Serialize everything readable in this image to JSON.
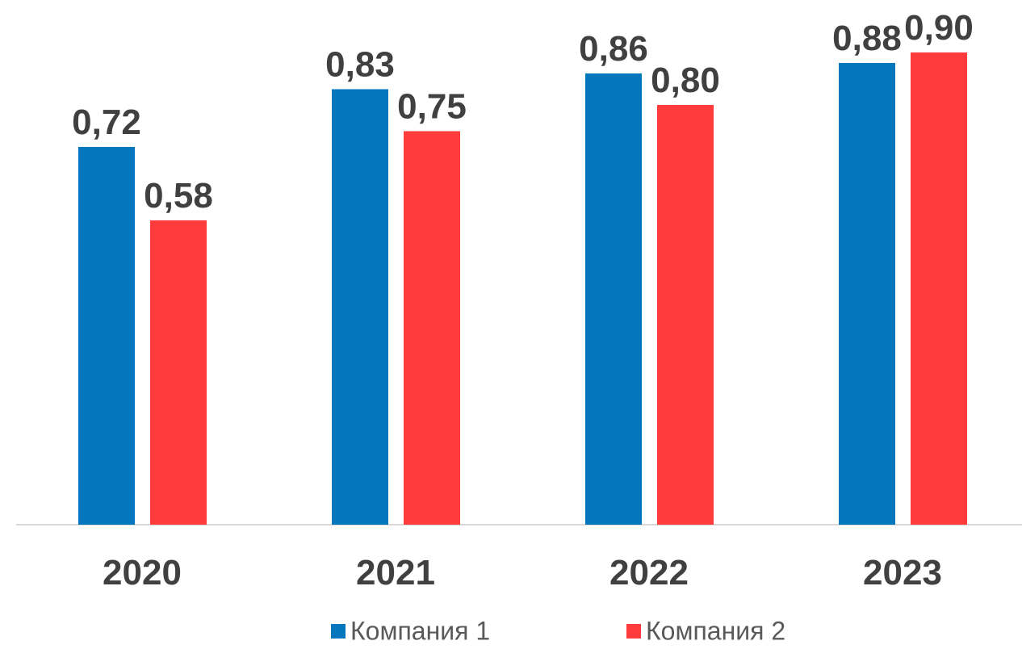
{
  "chart_data": {
    "type": "bar",
    "categories": [
      "2020",
      "2021",
      "2022",
      "2023"
    ],
    "series": [
      {
        "name": "Компания 1",
        "color": "#0277bd",
        "values": [
          0.72,
          0.83,
          0.86,
          0.88
        ],
        "value_labels": [
          "0,72",
          "0,83",
          "0,86",
          "0,88"
        ]
      },
      {
        "name": "Компания 2",
        "color": "#ff3b3b",
        "values": [
          0.58,
          0.75,
          0.8,
          0.9
        ],
        "value_labels": [
          "0,58",
          "0,75",
          "0,80",
          "0,90"
        ]
      }
    ],
    "legend": "bottom"
  }
}
